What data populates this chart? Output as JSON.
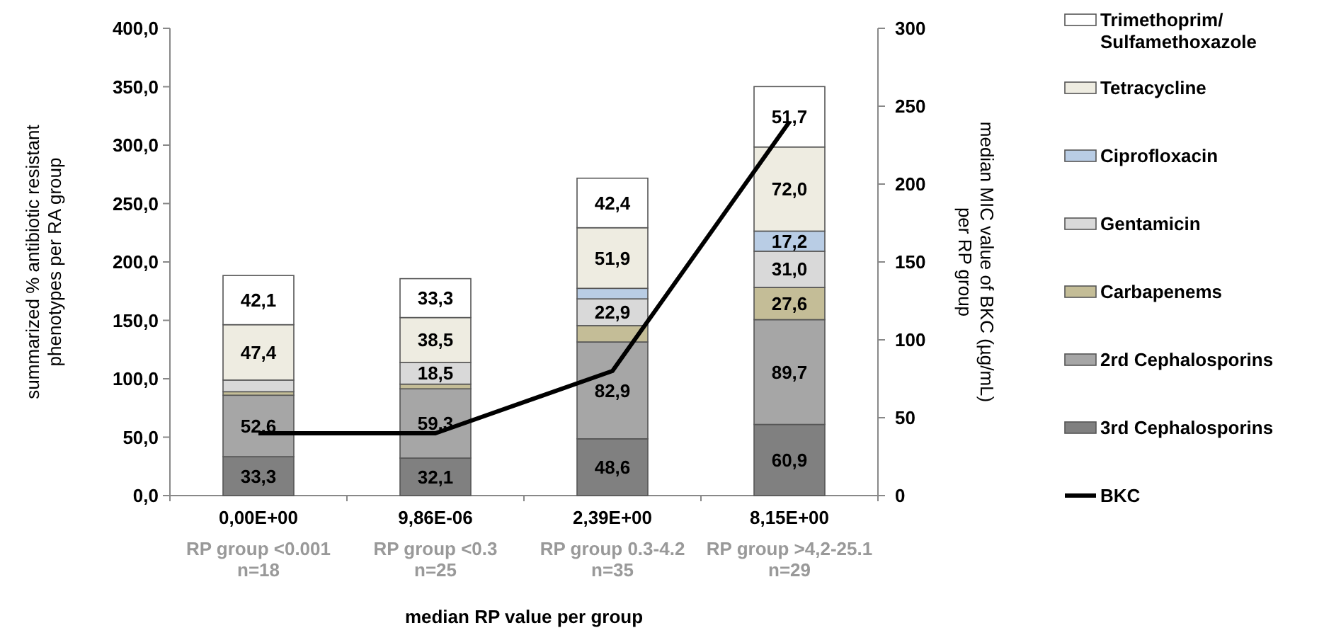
{
  "chart_data": {
    "type": "bar",
    "stacked": true,
    "categories": [
      "0,00E+00",
      "9,86E-06",
      "2,39E+00",
      "8,15E+00"
    ],
    "xlabel": "median RP value per group",
    "ylabel": "summarized % antibiotic resistant phenotypes per RA group",
    "y2label": "median MIC value of  BKC (µg/mL) per RP group",
    "ylim": [
      0,
      400
    ],
    "yticks": [
      {
        "value": 0,
        "label": "0,0"
      },
      {
        "value": 50,
        "label": "50,0"
      },
      {
        "value": 100,
        "label": "100,0"
      },
      {
        "value": 150,
        "label": "150,0"
      },
      {
        "value": 200,
        "label": "200,0"
      },
      {
        "value": 250,
        "label": "250,0"
      },
      {
        "value": 300,
        "label": "300,0"
      },
      {
        "value": 350,
        "label": "350,0"
      },
      {
        "value": 400,
        "label": "400,0"
      }
    ],
    "y2lim": [
      0,
      300
    ],
    "y2ticks": [
      0,
      50,
      100,
      150,
      200,
      250,
      300
    ],
    "legend": "right",
    "series": [
      {
        "name": "3rd Cephalosporins",
        "color": "#808080",
        "values": [
          33.3,
          32.1,
          48.6,
          60.9
        ],
        "value_labels": [
          "33,3",
          "32,1",
          "48,6",
          "60,9"
        ]
      },
      {
        "name": "2rd Cephalosporins",
        "color": "#a6a6a6",
        "values": [
          52.6,
          59.3,
          82.9,
          89.7
        ],
        "value_labels": [
          "52,6",
          "59,3",
          "82,9",
          "89,7"
        ]
      },
      {
        "name": "Carbapenems",
        "color": "#c4bd97",
        "values": [
          3,
          4,
          14,
          27.6
        ],
        "value_labels": [
          null,
          null,
          null,
          "27,6"
        ]
      },
      {
        "name": "Gentamicin",
        "color": "#d9d9d9",
        "values": [
          10,
          18.5,
          22.9,
          31.0
        ],
        "value_labels": [
          null,
          "18,5",
          "22,9",
          "31,0"
        ]
      },
      {
        "name": "Ciprofloxacin",
        "color": "#b9cde5",
        "values": [
          0,
          0,
          9,
          17.2
        ],
        "value_labels": [
          null,
          null,
          null,
          "17,2"
        ]
      },
      {
        "name": "Tetracycline",
        "color": "#eeece1",
        "values": [
          47.4,
          38.5,
          51.9,
          72.0
        ],
        "value_labels": [
          "47,4",
          "38,5",
          "51,9",
          "72,0"
        ]
      },
      {
        "name": "Trimethoprim/ Sulfamethoxazole",
        "color": "#ffffff",
        "values": [
          42.1,
          33.3,
          42.4,
          51.7
        ],
        "value_labels": [
          "42,1",
          "33,3",
          "42,4",
          "51,7"
        ]
      },
      {
        "name": "BKC",
        "type": "line",
        "axis": "y2",
        "color": "#000000",
        "values": [
          40,
          40,
          80,
          240
        ]
      }
    ],
    "annotations": [
      "RP group <0.001\nn=18",
      "RP group <0.3\nn=25",
      "RP group 0.3-4.2\nn=35",
      "RP group >4,2-25.1\nn=29"
    ]
  }
}
